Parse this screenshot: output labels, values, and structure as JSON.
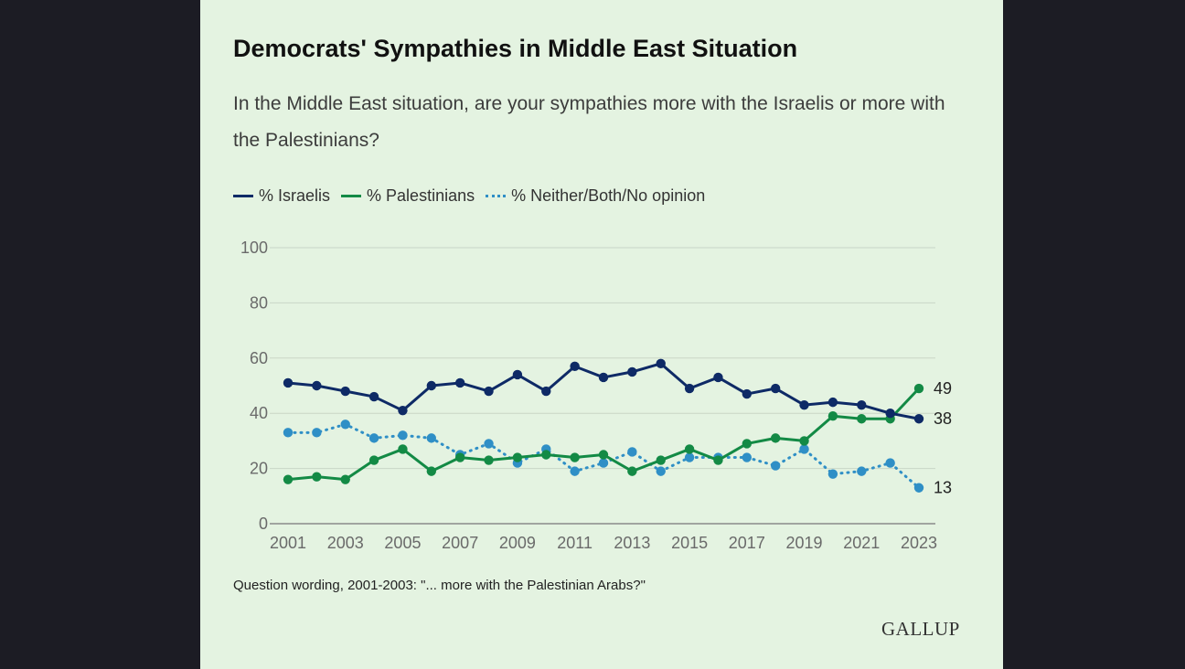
{
  "title": "Democrats' Sympathies in Middle East Situation",
  "subtitle": "In the Middle East situation, are your sympathies more with the Israelis or more with the Palestinians?",
  "footnote": "Question wording, 2001-2003: \"... more with the Palestinian Arabs?\"",
  "logo": "GALLUP",
  "colors": {
    "background": "#e4f3e1",
    "israelis": "#0e2a66",
    "palestinians": "#138a45",
    "neither": "#2f8fc6"
  },
  "chart_data": {
    "type": "line",
    "title": "Democrats' Sympathies in Middle East Situation",
    "x": [
      2001,
      2002,
      2003,
      2004,
      2005,
      2006,
      2007,
      2008,
      2009,
      2010,
      2011,
      2012,
      2013,
      2014,
      2015,
      2016,
      2017,
      2018,
      2019,
      2020,
      2021,
      2022,
      2023
    ],
    "x_tick_labels": [
      "2001",
      "2003",
      "2005",
      "2007",
      "2009",
      "2011",
      "2013",
      "2015",
      "2017",
      "2019",
      "2021",
      "2023"
    ],
    "y_tick_labels": [
      "0",
      "20",
      "40",
      "60",
      "80",
      "100"
    ],
    "ylim": [
      0,
      100
    ],
    "grid": true,
    "legend_position": "top-left",
    "series": [
      {
        "name": "% Israelis",
        "style": "solid",
        "values": [
          51,
          50,
          48,
          46,
          41,
          50,
          51,
          48,
          54,
          48,
          57,
          53,
          55,
          58,
          49,
          53,
          47,
          49,
          43,
          44,
          43,
          40,
          38
        ],
        "end_label": "38"
      },
      {
        "name": "% Palestinians",
        "style": "solid",
        "values": [
          16,
          17,
          16,
          23,
          27,
          19,
          24,
          23,
          24,
          25,
          24,
          25,
          19,
          23,
          27,
          23,
          29,
          31,
          30,
          39,
          38,
          38,
          49
        ],
        "end_label": "49"
      },
      {
        "name": "% Neither/Both/No opinion",
        "style": "dotted",
        "values": [
          33,
          33,
          36,
          31,
          32,
          31,
          25,
          29,
          22,
          27,
          19,
          22,
          26,
          19,
          24,
          24,
          24,
          21,
          27,
          18,
          19,
          22,
          13
        ],
        "end_label": "13"
      }
    ]
  }
}
